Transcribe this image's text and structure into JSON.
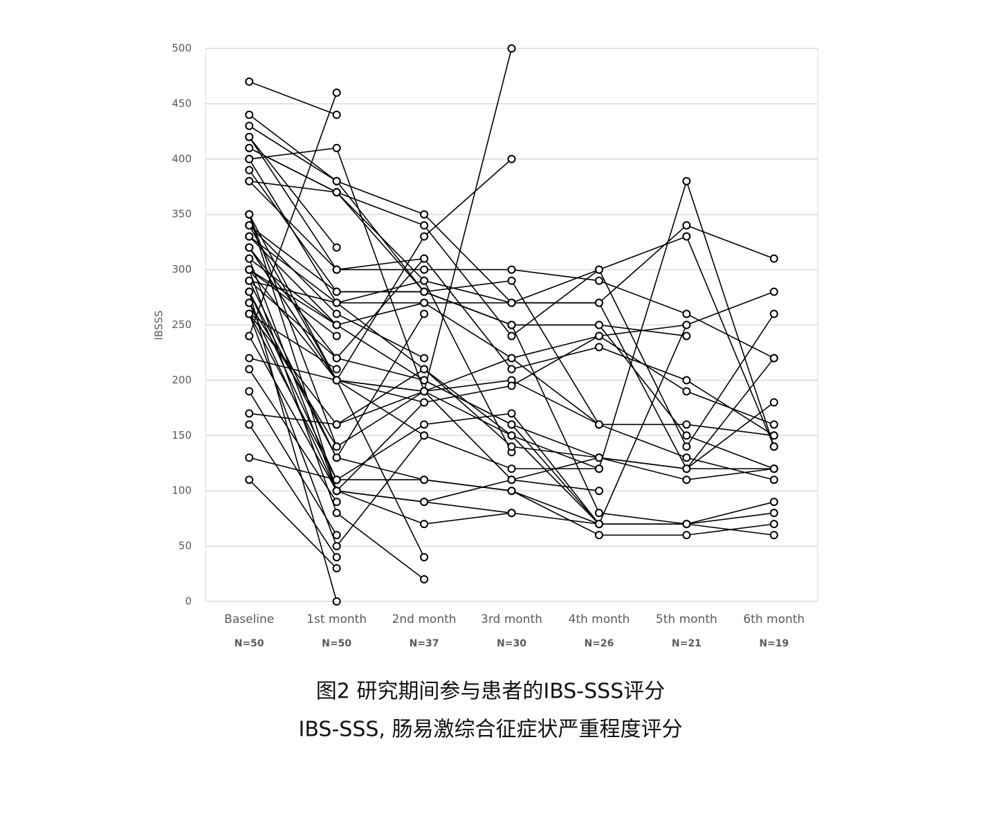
{
  "chart_data": {
    "type": "line",
    "y_label": "IBSSS",
    "categories": [
      "Baseline",
      "1st month",
      "2nd month",
      "3rd month",
      "4th month",
      "5th month",
      "6th month"
    ],
    "sample_sizes": [
      "N=50",
      "N=50",
      "N=37",
      "N=30",
      "N=26",
      "N=21",
      "N=19"
    ],
    "ylim": [
      0,
      500
    ],
    "yticks": [
      0,
      50,
      100,
      150,
      200,
      250,
      300,
      350,
      400,
      450,
      500
    ],
    "grid": true,
    "color": "#000000",
    "series": [
      {
        "values": [
          470,
          440,
          null,
          null,
          null,
          null,
          null
        ]
      },
      {
        "values": [
          240,
          460,
          null,
          null,
          null,
          null,
          null
        ]
      },
      {
        "values": [
          420,
          320,
          null,
          null,
          null,
          null,
          null
        ]
      },
      {
        "values": [
          330,
          250,
          null,
          null,
          null,
          null,
          null
        ]
      },
      {
        "values": [
          300,
          240,
          null,
          null,
          null,
          null,
          null
        ]
      },
      {
        "values": [
          260,
          210,
          null,
          null,
          null,
          null,
          null
        ]
      },
      {
        "values": [
          210,
          90,
          null,
          null,
          null,
          null,
          null
        ]
      },
      {
        "values": [
          190,
          60,
          null,
          null,
          null,
          null,
          null
        ]
      },
      {
        "values": [
          160,
          40,
          null,
          null,
          null,
          null,
          null
        ]
      },
      {
        "values": [
          130,
          110,
          null,
          null,
          null,
          null,
          null
        ]
      },
      {
        "values": [
          110,
          30,
          null,
          null,
          null,
          null,
          null
        ]
      },
      {
        "values": [
          280,
          0,
          null,
          null,
          null,
          null,
          null
        ]
      },
      {
        "values": [
          350,
          140,
          null,
          null,
          null,
          null,
          null
        ]
      },
      {
        "values": [
          340,
          260,
          220,
          null,
          null,
          null,
          null
        ]
      },
      {
        "values": [
          320,
          200,
          40,
          null,
          null,
          null,
          null
        ]
      },
      {
        "values": [
          300,
          80,
          20,
          null,
          null,
          null,
          null
        ]
      },
      {
        "values": [
          380,
          300,
          310,
          null,
          null,
          null,
          null
        ]
      },
      {
        "values": [
          290,
          130,
          260,
          null,
          null,
          null,
          null
        ]
      },
      {
        "values": [
          270,
          100,
          180,
          null,
          null,
          null,
          null
        ]
      },
      {
        "values": [
          260,
          50,
          150,
          null,
          null,
          null,
          null
        ]
      },
      {
        "values": [
          400,
          410,
          190,
          500,
          null,
          null,
          null
        ]
      },
      {
        "values": [
          350,
          200,
          330,
          400,
          null,
          null,
          null
        ]
      },
      {
        "values": [
          310,
          100,
          90,
          80,
          null,
          null,
          null
        ]
      },
      {
        "values": [
          400,
          270,
          290,
          135,
          null,
          null,
          null
        ]
      },
      {
        "values": [
          410,
          370,
          280,
          290,
          160,
          null,
          null
        ]
      },
      {
        "values": [
          320,
          220,
          200,
          160,
          70,
          null,
          null
        ]
      },
      {
        "values": [
          280,
          110,
          160,
          170,
          70,
          null,
          null
        ]
      },
      {
        "values": [
          260,
          160,
          190,
          110,
          100,
          null,
          null
        ]
      },
      {
        "values": [
          290,
          270,
          210,
          150,
          120,
          null,
          null
        ]
      },
      {
        "values": [
          430,
          380,
          280,
          250,
          250,
          240,
          null
        ]
      },
      {
        "values": [
          340,
          200,
          190,
          220,
          240,
          250,
          null
        ]
      },
      {
        "values": [
          440,
          380,
          350,
          270,
          270,
          340,
          310
        ]
      },
      {
        "values": [
          420,
          300,
          300,
          300,
          290,
          260,
          220
        ]
      },
      {
        "values": [
          410,
          370,
          290,
          270,
          300,
          330,
          140
        ]
      },
      {
        "values": [
          380,
          370,
          340,
          240,
          300,
          140,
          260
        ]
      },
      {
        "values": [
          340,
          280,
          280,
          250,
          250,
          150,
          120
        ]
      },
      {
        "values": [
          330,
          270,
          270,
          220,
          160,
          160,
          150
        ]
      },
      {
        "values": [
          320,
          200,
          190,
          200,
          160,
          130,
          110
        ]
      },
      {
        "values": [
          310,
          250,
          200,
          160,
          130,
          120,
          120
        ]
      },
      {
        "values": [
          300,
          200,
          150,
          120,
          120,
          380,
          140
        ]
      },
      {
        "values": [
          290,
          220,
          310,
          210,
          230,
          200,
          150
        ]
      },
      {
        "values": [
          280,
          130,
          110,
          100,
          70,
          70,
          90
        ]
      },
      {
        "values": [
          270,
          140,
          190,
          150,
          70,
          70,
          80
        ]
      },
      {
        "values": [
          260,
          110,
          110,
          100,
          60,
          60,
          70
        ]
      },
      {
        "values": [
          240,
          100,
          90,
          110,
          130,
          110,
          120
        ]
      },
      {
        "values": [
          220,
          200,
          180,
          195,
          240,
          190,
          160
        ]
      },
      {
        "values": [
          170,
          160,
          210,
          140,
          130,
          120,
          180
        ]
      },
      {
        "values": [
          390,
          280,
          280,
          250,
          80,
          70,
          60
        ]
      },
      {
        "values": [
          350,
          100,
          70,
          80,
          70,
          250,
          280
        ]
      },
      {
        "values": [
          300,
          250,
          270,
          270,
          270,
          120,
          220
        ]
      }
    ]
  },
  "caption": {
    "line1": "图2 研究期间参与患者的IBS-SSS评分",
    "line2": "IBS-SSS, 肠易激综合征症状严重程度评分"
  }
}
